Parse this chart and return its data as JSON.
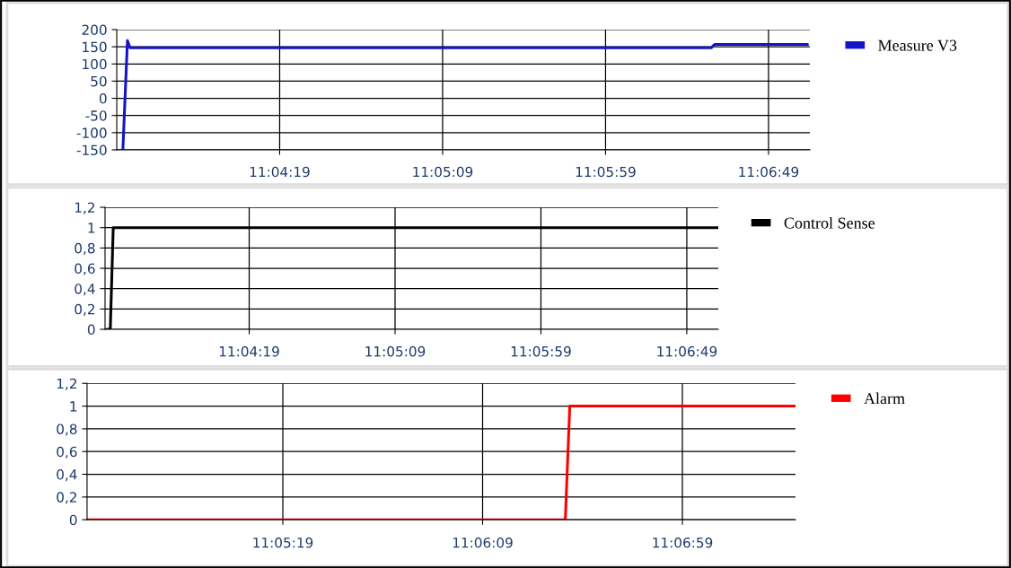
{
  "chart_data": [
    {
      "type": "line",
      "x": [
        11.05858,
        11.05897,
        11.05919,
        11.10872,
        11.10903,
        11.11694
      ],
      "series": [
        {
          "name": "Measure V3",
          "color": "#1414c8",
          "values": [
            -150,
            168,
            147,
            147,
            157,
            157
          ]
        }
      ],
      "xlim": [
        11.05806,
        11.11714
      ],
      "xticks": [
        {
          "value": 11.071944,
          "label": "11:04:19"
        },
        {
          "value": 11.085833,
          "label": "11:05:09"
        },
        {
          "value": 11.099722,
          "label": "11:05:59"
        },
        {
          "value": 11.113611,
          "label": "11:06:49"
        }
      ],
      "ylim": [
        -150,
        200
      ],
      "yticks": [
        -150,
        -100,
        -50,
        0,
        50,
        100,
        150,
        200
      ],
      "grid": true,
      "legend": "right",
      "marker": "none",
      "line_style": "solid"
    },
    {
      "type": "line",
      "x": [
        11.05839,
        11.05872,
        11.059,
        11.11661
      ],
      "series": [
        {
          "name": "Control Sense",
          "color": "#000000",
          "values": [
            0,
            0,
            1,
            1
          ]
        }
      ],
      "xlim": [
        11.05822,
        11.11661
      ],
      "xticks": [
        {
          "value": 11.071944,
          "label": "11:04:19"
        },
        {
          "value": 11.085833,
          "label": "11:05:09"
        },
        {
          "value": 11.099722,
          "label": "11:05:59"
        },
        {
          "value": 11.113611,
          "label": "11:06:49"
        }
      ],
      "ylim": [
        0,
        1.2
      ],
      "yticks": [
        0,
        {
          "value": 0.2,
          "label": "0,2"
        },
        {
          "value": 0.4,
          "label": "0,4"
        },
        {
          "value": 0.6,
          "label": "0,6"
        },
        {
          "value": 0.8,
          "label": "0,8"
        },
        1,
        {
          "value": 1.2,
          "label": "1,2"
        }
      ],
      "grid": true,
      "legend": "right",
      "marker": "none",
      "line_style": "solid"
    },
    {
      "type": "line",
      "x": [
        11.075,
        11.10825,
        11.10856,
        11.12425
      ],
      "series": [
        {
          "name": "Alarm",
          "color": "#ff0000",
          "values": [
            0,
            0,
            1,
            1
          ]
        }
      ],
      "xlim": [
        11.075,
        11.12425
      ],
      "xticks": [
        {
          "value": 11.088611,
          "label": "11:05:19"
        },
        {
          "value": 11.1025,
          "label": "11:06:09"
        },
        {
          "value": 11.116389,
          "label": "11:06:59"
        }
      ],
      "ylim": [
        0,
        1.2
      ],
      "yticks": [
        0,
        {
          "value": 0.2,
          "label": "0,2"
        },
        {
          "value": 0.4,
          "label": "0,4"
        },
        {
          "value": 0.6,
          "label": "0,6"
        },
        {
          "value": 0.8,
          "label": "0,8"
        },
        1,
        {
          "value": 1.2,
          "label": "1,2"
        }
      ],
      "grid": true,
      "legend": "right",
      "marker": "none",
      "line_style": "solid"
    }
  ]
}
